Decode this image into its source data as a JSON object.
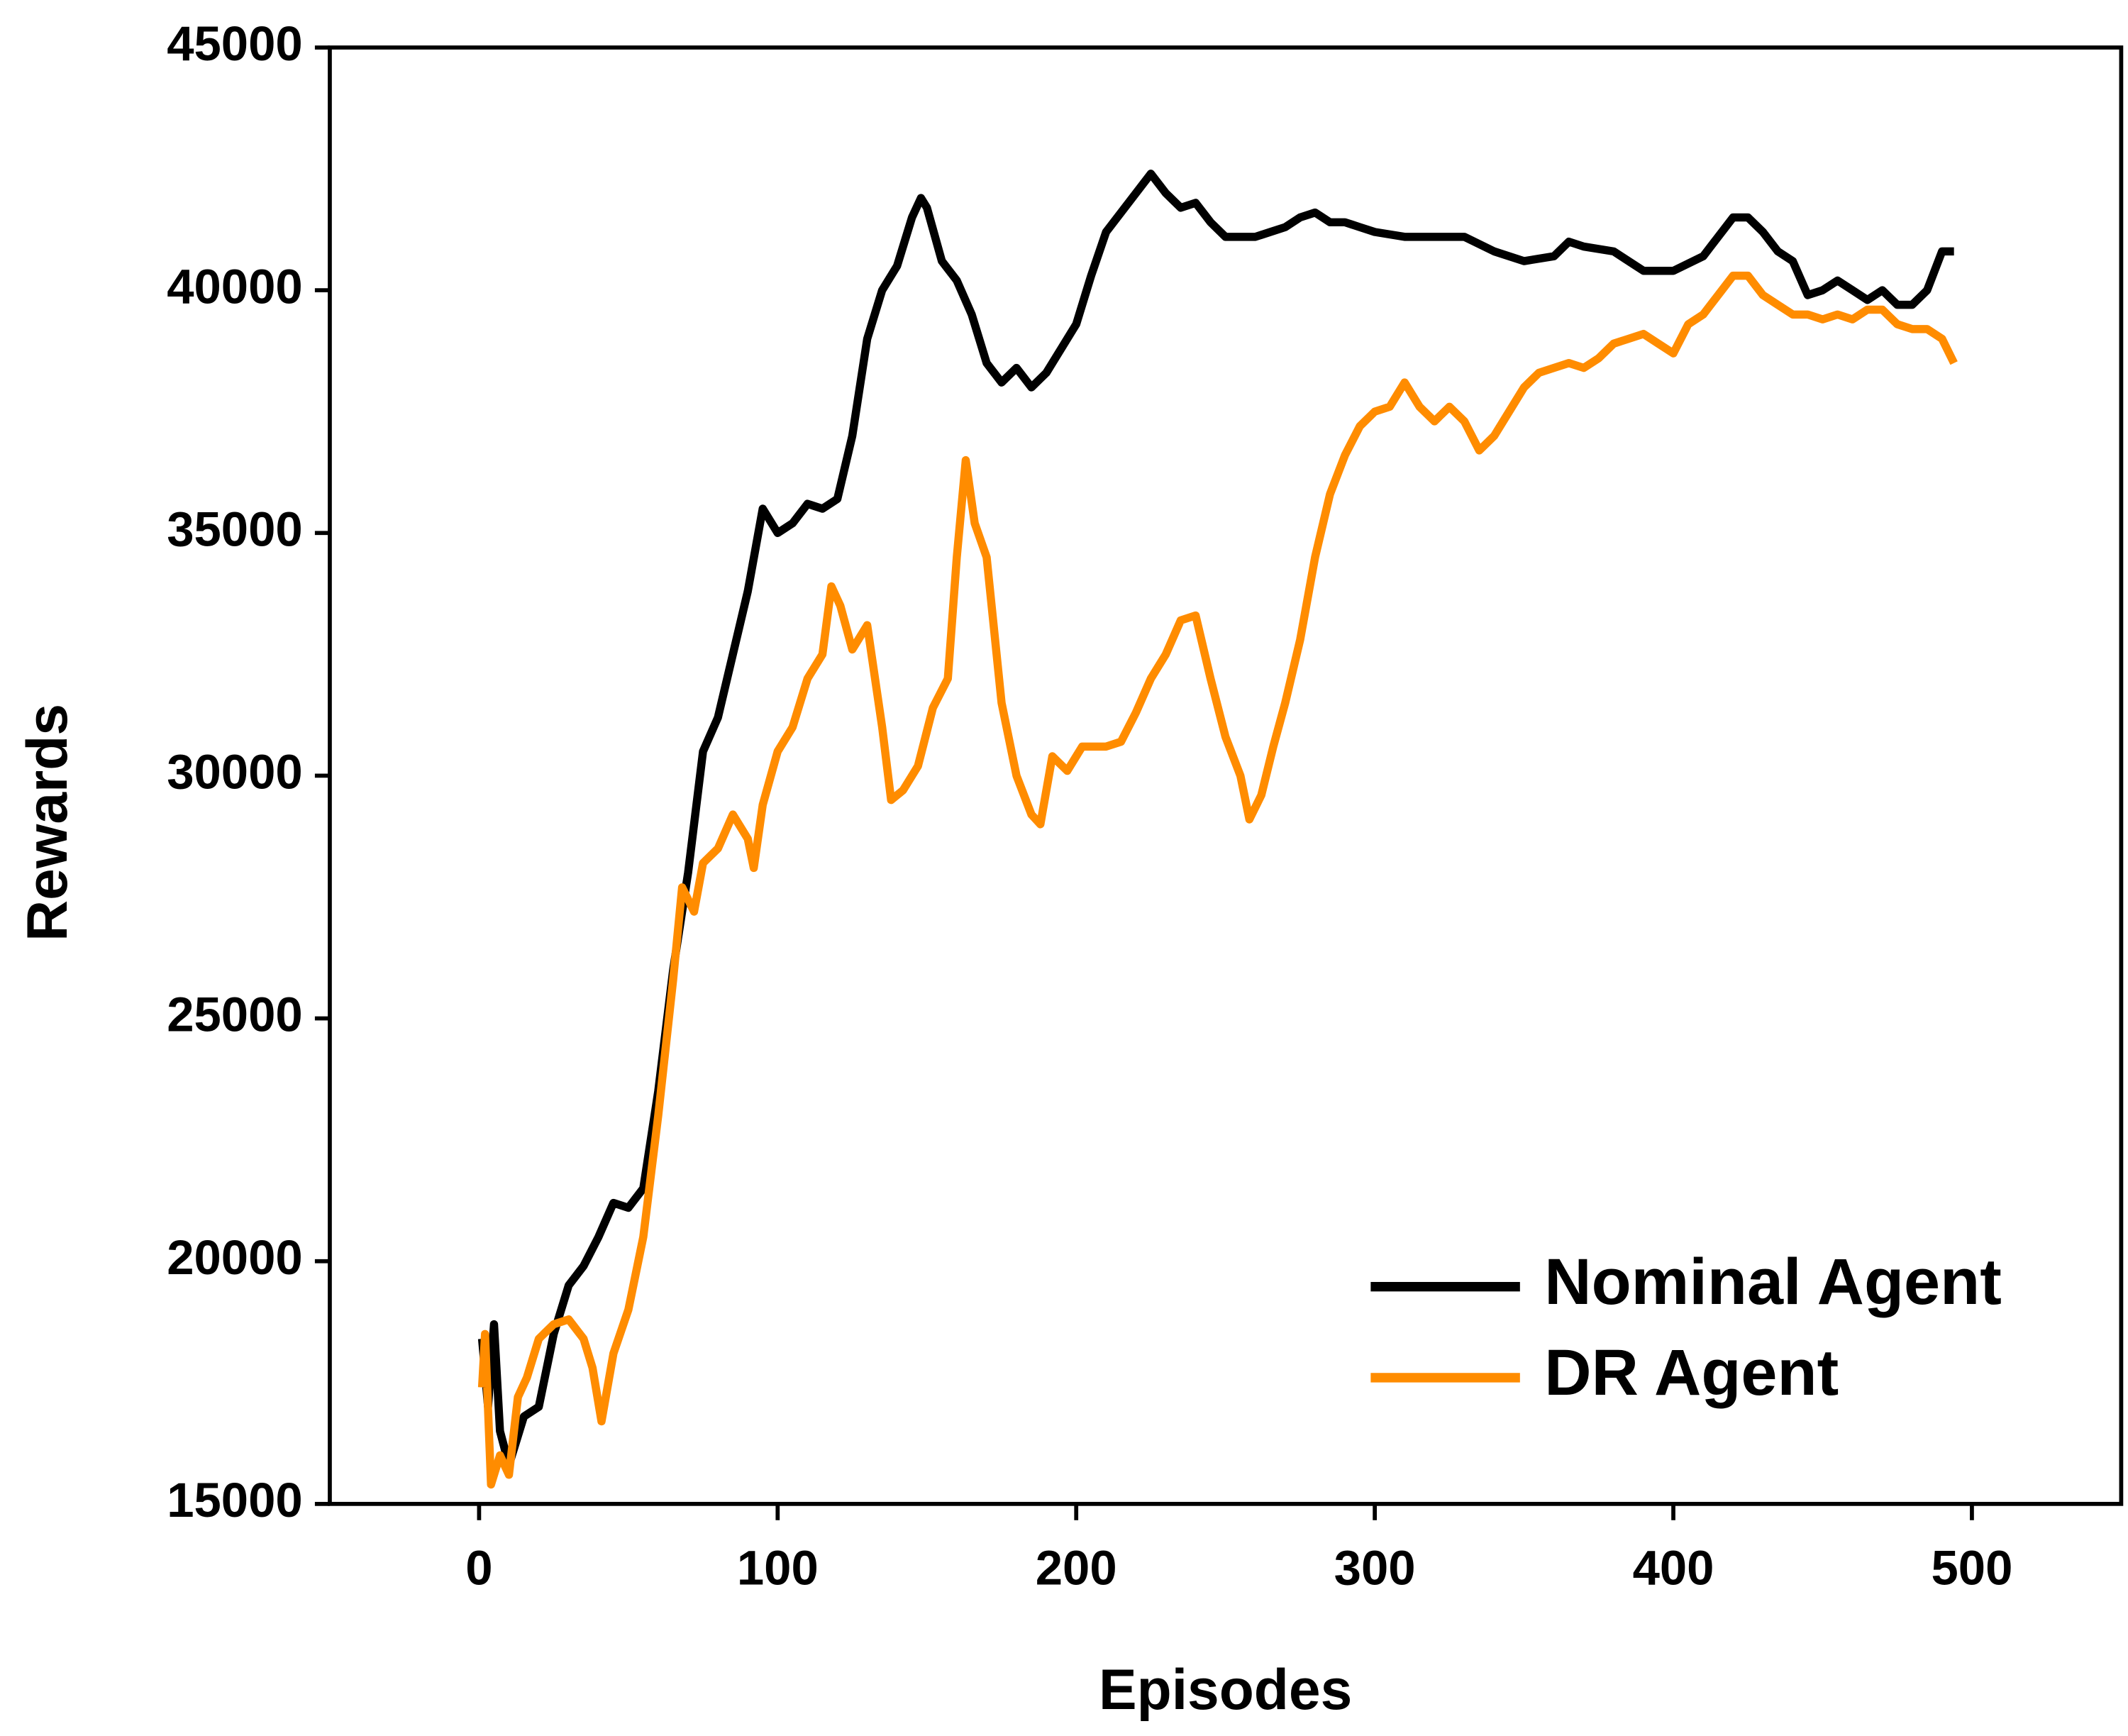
{
  "chart_data": {
    "type": "line",
    "xlabel": "Episodes",
    "ylabel": "Rewards",
    "xlim": [
      -50,
      550
    ],
    "ylim": [
      15000,
      45000
    ],
    "xticks": [
      0,
      100,
      200,
      300,
      400,
      500
    ],
    "yticks": [
      15000,
      20000,
      25000,
      30000,
      35000,
      40000,
      45000
    ],
    "legend": "lower right",
    "series": [
      {
        "name": "Nominal Agent",
        "color": "#000000",
        "x": [
          1,
          3,
          5,
          7,
          10,
          15,
          20,
          25,
          30,
          35,
          40,
          45,
          50,
          55,
          60,
          65,
          70,
          75,
          80,
          85,
          90,
          95,
          100,
          105,
          110,
          115,
          120,
          125,
          130,
          135,
          140,
          145,
          148,
          150,
          155,
          160,
          165,
          170,
          175,
          180,
          185,
          190,
          195,
          200,
          205,
          210,
          215,
          220,
          225,
          230,
          235,
          240,
          245,
          250,
          255,
          260,
          265,
          270,
          275,
          280,
          285,
          290,
          295,
          300,
          310,
          320,
          330,
          340,
          350,
          360,
          365,
          370,
          380,
          390,
          400,
          410,
          420,
          425,
          430,
          435,
          440,
          445,
          450,
          455,
          460,
          465,
          470,
          475,
          480,
          485,
          490,
          494
        ],
        "values": [
          18400,
          17000,
          18700,
          16500,
          15800,
          16800,
          17000,
          18500,
          19500,
          19900,
          20500,
          21200,
          21100,
          21500,
          23500,
          26000,
          28000,
          30500,
          31200,
          32500,
          33800,
          35500,
          35000,
          35200,
          35600,
          35500,
          35700,
          37000,
          39000,
          40000,
          40500,
          41500,
          41900,
          41700,
          40600,
          40200,
          39500,
          38500,
          38100,
          38400,
          38000,
          38300,
          38800,
          39300,
          40300,
          41200,
          41600,
          42000,
          42400,
          42000,
          41700,
          41800,
          41400,
          41100,
          41100,
          41100,
          41200,
          41300,
          41500,
          41600,
          41400,
          41400,
          41300,
          41200,
          41100,
          41100,
          41100,
          40800,
          40600,
          40700,
          41000,
          40900,
          40800,
          40400,
          40400,
          40700,
          41500,
          41500,
          41200,
          40800,
          40600,
          39900,
          40000,
          40200,
          40000,
          39800,
          40000,
          39700,
          39700,
          40000,
          40800,
          40800
        ]
      },
      {
        "name": "DR Agent",
        "color": "#ff8c00",
        "x": [
          1,
          2,
          4,
          7,
          10,
          13,
          16,
          20,
          25,
          30,
          35,
          38,
          41,
          45,
          50,
          55,
          60,
          65,
          68,
          72,
          75,
          80,
          85,
          90,
          92,
          95,
          100,
          105,
          110,
          115,
          118,
          121,
          125,
          130,
          135,
          138,
          142,
          147,
          152,
          157,
          160,
          163,
          166,
          170,
          175,
          180,
          185,
          188,
          192,
          197,
          202,
          210,
          215,
          220,
          225,
          230,
          235,
          240,
          245,
          250,
          255,
          258,
          262,
          266,
          270,
          275,
          280,
          285,
          290,
          295,
          300,
          305,
          310,
          315,
          320,
          325,
          330,
          335,
          340,
          345,
          350,
          355,
          360,
          365,
          370,
          375,
          380,
          385,
          390,
          395,
          400,
          405,
          410,
          415,
          420,
          425,
          430,
          435,
          440,
          445,
          450,
          455,
          460,
          465,
          470,
          475,
          480,
          485,
          490,
          494
        ],
        "values": [
          17400,
          18500,
          15400,
          16000,
          15600,
          17200,
          17600,
          18400,
          18700,
          18800,
          18400,
          17800,
          16700,
          18100,
          19000,
          20500,
          23000,
          25800,
          27700,
          27200,
          28200,
          28500,
          29200,
          28700,
          28100,
          29400,
          30500,
          31000,
          32000,
          32500,
          33900,
          33500,
          32600,
          33100,
          31000,
          29500,
          29700,
          30200,
          31400,
          32000,
          34500,
          36500,
          35200,
          34500,
          31500,
          30000,
          29200,
          29000,
          30400,
          30100,
          30600,
          30600,
          30700,
          31300,
          32000,
          32500,
          33200,
          33300,
          32000,
          30800,
          30000,
          29100,
          29600,
          30600,
          31500,
          32800,
          34500,
          35800,
          36600,
          37200,
          37500,
          37600,
          38100,
          37600,
          37300,
          37600,
          37300,
          36700,
          37000,
          37500,
          38000,
          38300,
          38400,
          38500,
          38400,
          38600,
          38900,
          39000,
          39100,
          38900,
          38700,
          39300,
          39500,
          39900,
          40300,
          40300,
          39900,
          39700,
          39500,
          39500,
          39400,
          39500,
          39400,
          39600,
          39600,
          39300,
          39200,
          39200,
          39000,
          38500
        ]
      }
    ]
  }
}
